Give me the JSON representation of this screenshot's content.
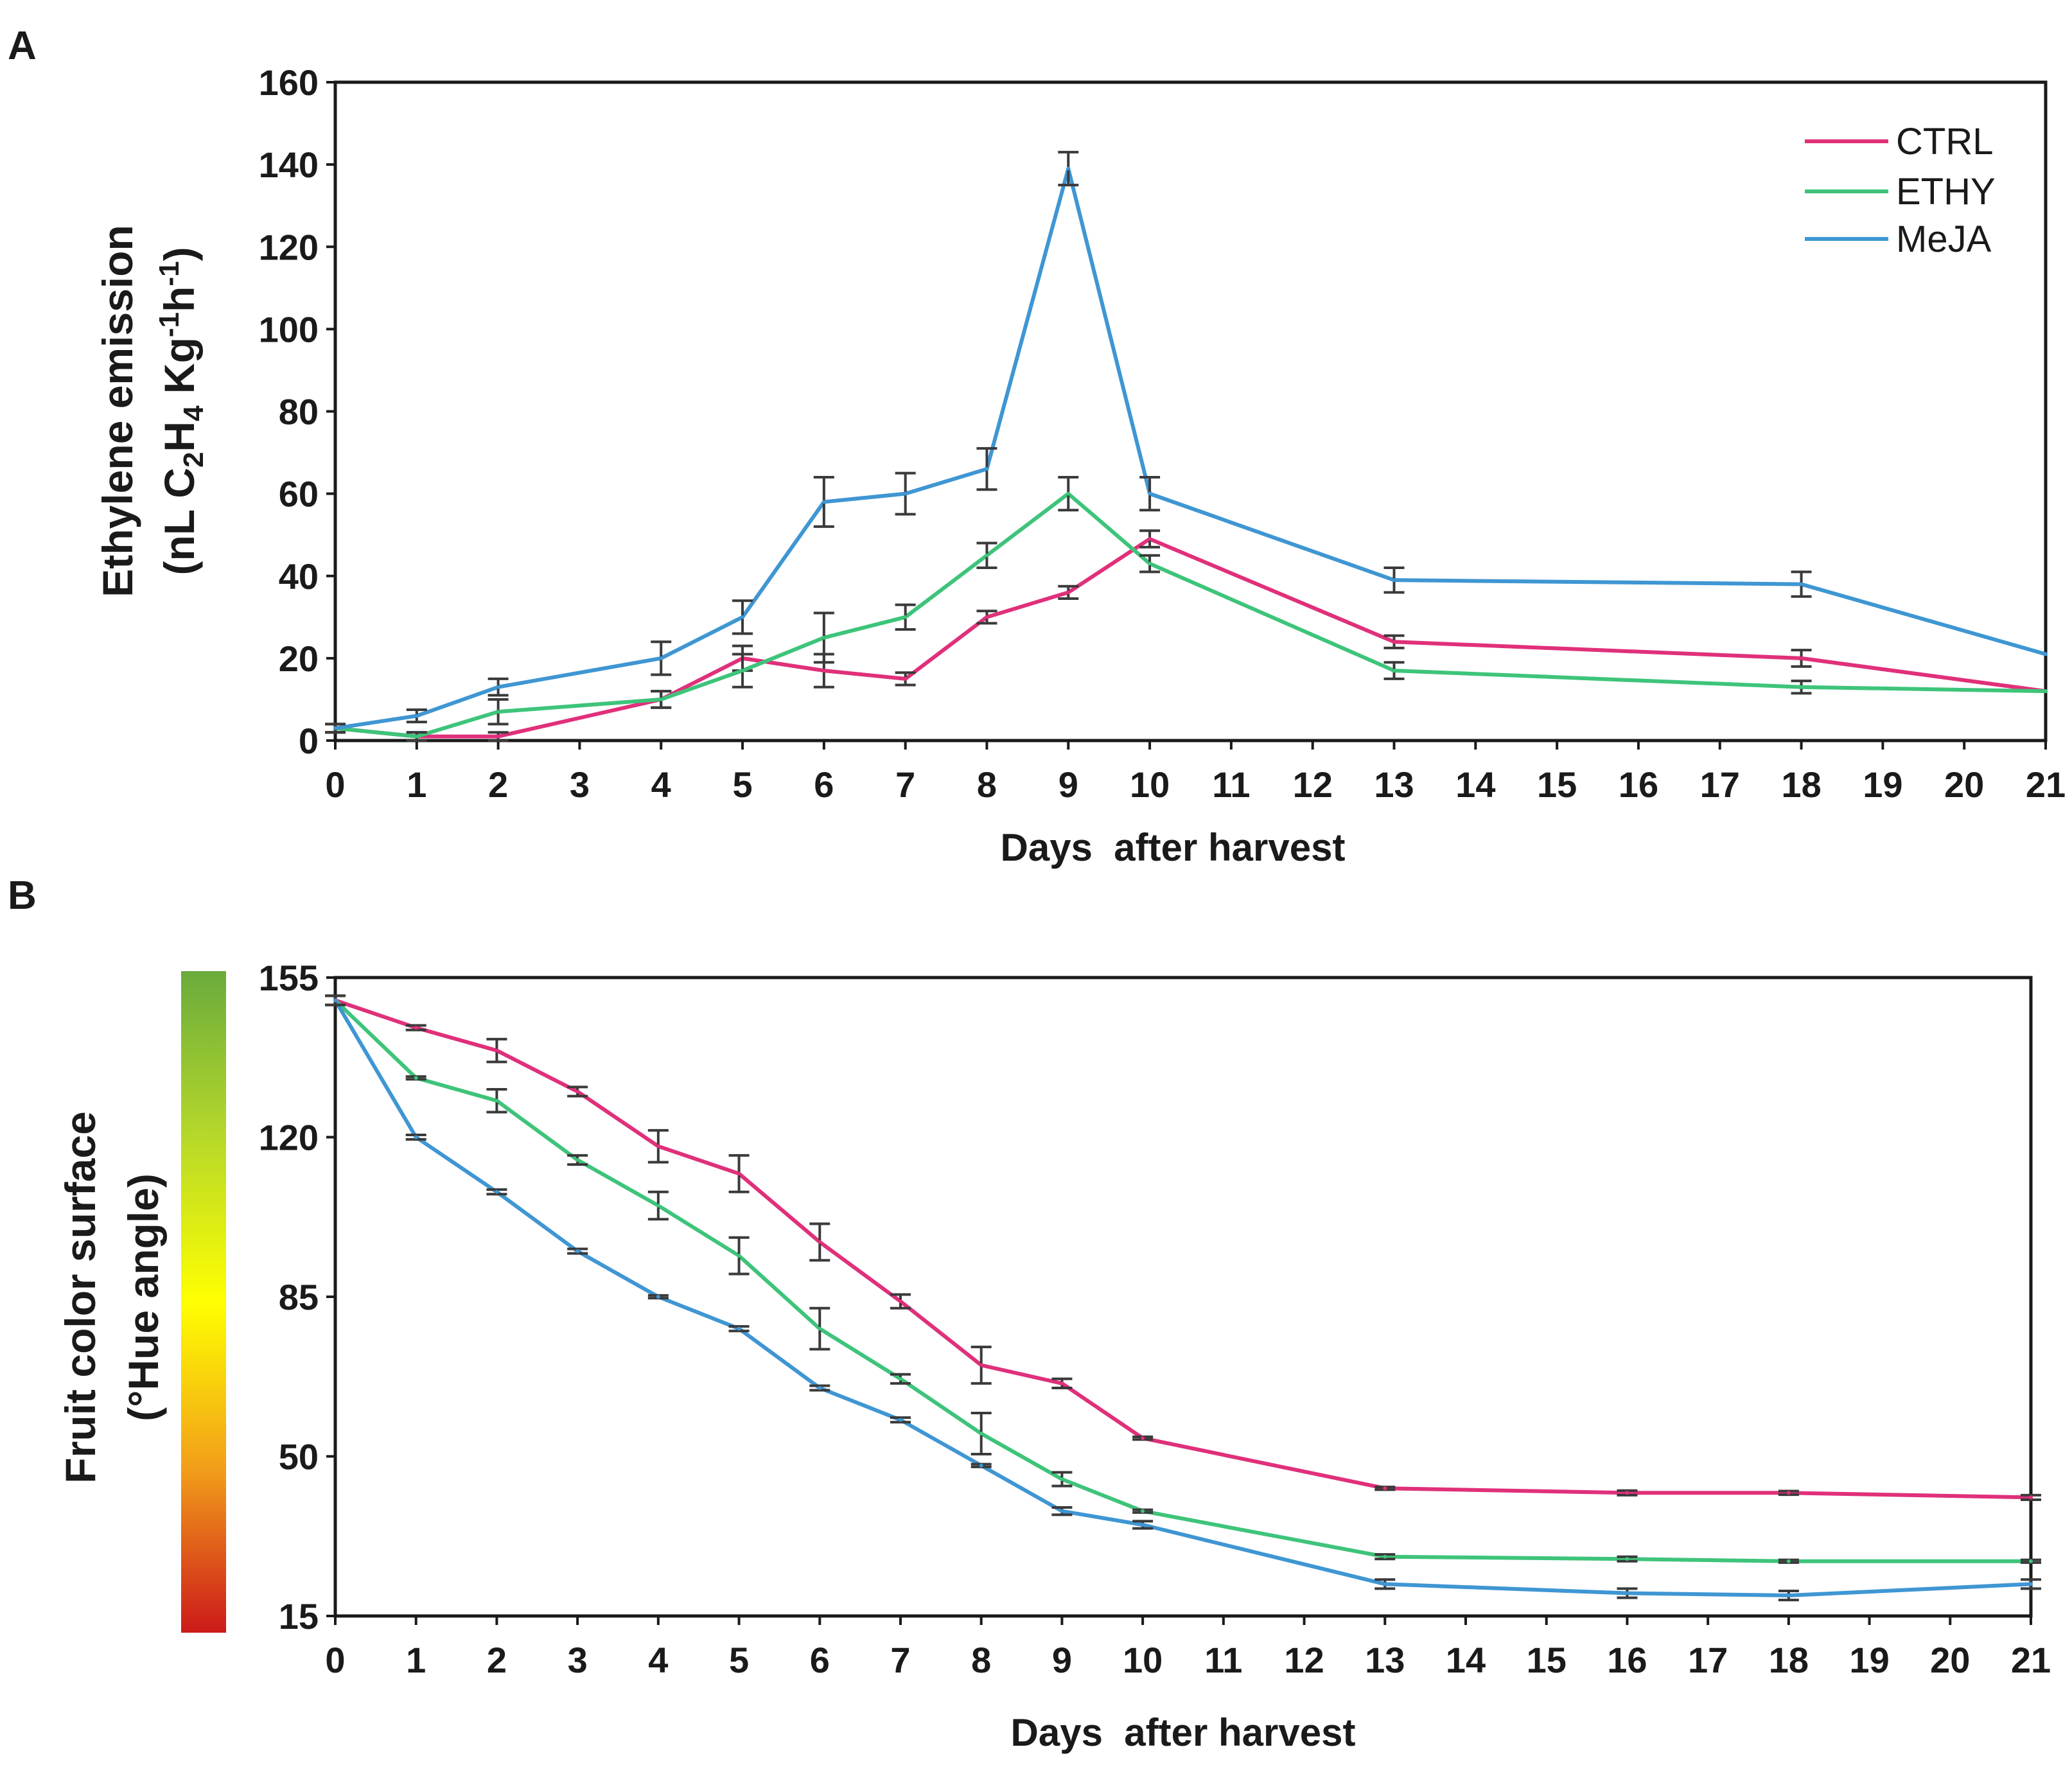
{
  "colors": {
    "CTRL": "#e0307a",
    "ETHY": "#3ec47a",
    "MeJA": "#3f96d3",
    "errbar": "#3a3a3a",
    "axis": "#1a1a1a"
  },
  "chart_data": [
    {
      "panel_label": "A",
      "type": "line",
      "xlabel": "Days  after harvest",
      "ylabel_line1": "Ethylene emission",
      "ylabel_line2": "(nL C2H4 Kg-1h-1)",
      "ylim": [
        0,
        160
      ],
      "yticks": [
        0,
        20,
        40,
        60,
        80,
        100,
        120,
        140,
        160
      ],
      "xlim": [
        0,
        21
      ],
      "xticks": [
        0,
        1,
        2,
        3,
        4,
        5,
        6,
        7,
        8,
        9,
        10,
        11,
        12,
        13,
        14,
        15,
        16,
        17,
        18,
        19,
        20,
        21
      ],
      "legend": [
        "CTRL",
        "ETHY",
        "MeJA"
      ],
      "legend_position": "top-right",
      "series": [
        {
          "name": "CTRL",
          "x": [
            0,
            1,
            2,
            4,
            5,
            6,
            7,
            8,
            9,
            10,
            13,
            18,
            21
          ],
          "values": [
            3,
            1,
            1,
            10,
            20,
            17,
            15,
            30,
            36,
            49,
            24,
            20,
            12
          ],
          "errors": [
            1,
            1,
            1,
            2,
            3,
            4,
            1.5,
            1.5,
            1.5,
            2,
            1.5,
            2,
            0
          ]
        },
        {
          "name": "ETHY",
          "x": [
            0,
            1,
            2,
            4,
            5,
            6,
            7,
            8,
            9,
            10,
            13,
            18,
            21
          ],
          "values": [
            3,
            1,
            7,
            10,
            17,
            25,
            30,
            45,
            60,
            43,
            17,
            13,
            12
          ],
          "errors": [
            1,
            1,
            3,
            2,
            4,
            6,
            3,
            3,
            4,
            2,
            2,
            1.5,
            0
          ]
        },
        {
          "name": "MeJA",
          "x": [
            0,
            1,
            2,
            4,
            5,
            6,
            7,
            8,
            9,
            10,
            13,
            18,
            21
          ],
          "values": [
            3,
            6,
            13,
            20,
            30,
            58,
            60,
            66,
            139,
            60,
            39,
            38,
            21
          ],
          "errors": [
            1,
            1.5,
            2,
            4,
            4,
            6,
            5,
            5,
            4,
            4,
            3,
            3,
            0
          ]
        }
      ]
    },
    {
      "panel_label": "B",
      "type": "line",
      "xlabel": "Days  after harvest",
      "ylabel_line1": "Fruit color surface",
      "ylabel_line2": "(°Hue angle)",
      "ylim": [
        15,
        155
      ],
      "yticks": [
        15,
        50,
        85,
        120,
        155
      ],
      "xlim": [
        0,
        21
      ],
      "xticks": [
        0,
        1,
        2,
        3,
        4,
        5,
        6,
        7,
        8,
        9,
        10,
        11,
        12,
        13,
        14,
        15,
        16,
        17,
        18,
        19,
        20,
        21
      ],
      "colorbar": [
        "#cc1a1a",
        "#f29f1a",
        "#ffff00",
        "#b6d82a",
        "#6aab3c"
      ],
      "series": [
        {
          "name": "CTRL",
          "x": [
            0,
            1,
            2,
            3,
            4,
            5,
            6,
            7,
            8,
            9,
            10,
            13,
            16,
            18,
            21
          ],
          "values": [
            150,
            144,
            139,
            130,
            118,
            112,
            97,
            84,
            70,
            66,
            54,
            43,
            42,
            42,
            41
          ],
          "errors": [
            1,
            0.5,
            2.5,
            1,
            3.5,
            4,
            4,
            1.5,
            4,
            1,
            0.3,
            0.3,
            0.5,
            0.4,
            0.5
          ]
        },
        {
          "name": "ETHY",
          "x": [
            0,
            1,
            2,
            3,
            4,
            5,
            6,
            7,
            8,
            9,
            10,
            13,
            16,
            18,
            21
          ],
          "values": [
            150,
            133,
            128,
            115,
            105,
            94,
            78,
            67,
            55,
            45,
            38,
            28,
            27.5,
            27,
            27
          ],
          "errors": [
            1,
            0.3,
            2.5,
            1,
            3,
            4,
            4.5,
            1,
            4.5,
            1.5,
            0.3,
            0.5,
            0.5,
            0.3,
            0.3
          ]
        },
        {
          "name": "MeJA",
          "x": [
            0,
            1,
            2,
            3,
            4,
            5,
            6,
            7,
            8,
            9,
            10,
            13,
            16,
            18,
            21
          ],
          "values": [
            150,
            120,
            108,
            95,
            85,
            78,
            65,
            58,
            48,
            38,
            35,
            22,
            20,
            19.5,
            22
          ],
          "errors": [
            1,
            0.5,
            0.5,
            0.5,
            0.3,
            0.5,
            0.5,
            0.5,
            0.3,
            0.8,
            0.8,
            1,
            1,
            1,
            1
          ]
        }
      ]
    }
  ]
}
